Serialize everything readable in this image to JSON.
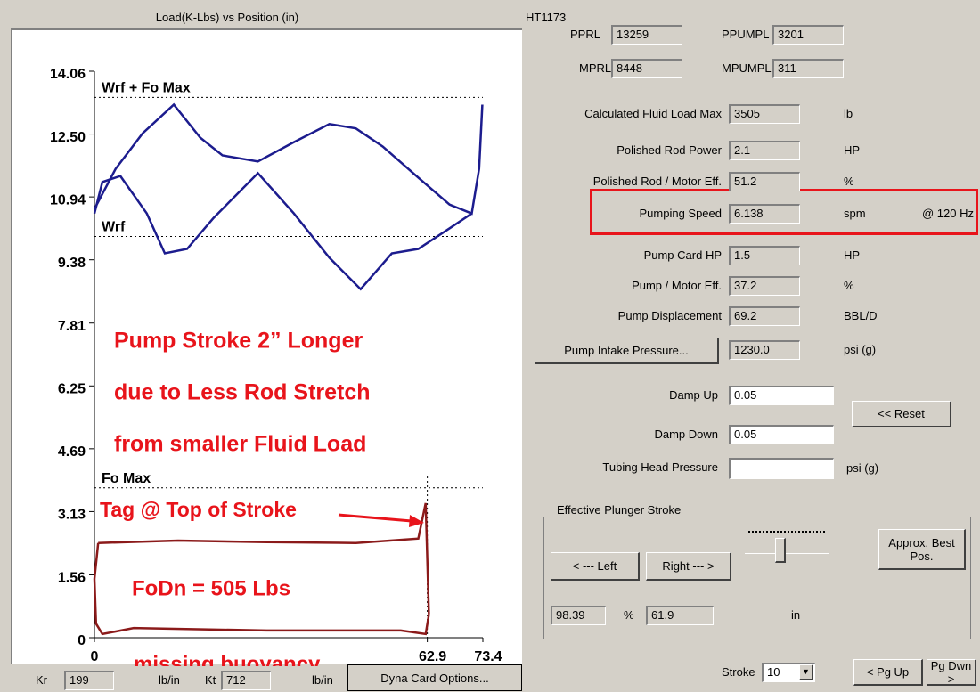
{
  "plot": {
    "title": "Load(K-Lbs) vs Position (in)",
    "xlim": [
      0,
      73.4
    ],
    "ylim": [
      0,
      14.06
    ],
    "yticks": [
      0,
      1.56,
      3.13,
      4.69,
      6.25,
      7.81,
      9.38,
      10.94,
      {
        "value": 12.5,
        "label": "12.50"
      },
      14.06
    ],
    "xticks": [
      0,
      62.9,
      73.4
    ],
    "references": [
      {
        "label": "Wrf + Fo Max",
        "value": 13.41
      },
      {
        "label": "Wrf",
        "value": 9.96
      },
      {
        "label": "Fo Max",
        "value": 3.72
      }
    ],
    "annotations": [
      "Pump Stroke 2” Longer",
      "due to Less Rod Stretch",
      "from smaller Fluid Load",
      "Tag @ Top of Stroke",
      "FoDn = 505 Lbs",
      "missing buoyancy"
    ],
    "curves": [
      {
        "color": "#1c1c8e",
        "x": [
          0,
          4.0,
          9.1,
          15.0,
          20.0,
          24.2,
          30.9,
          37.7,
          44.4,
          49.4,
          54.5,
          61.2,
          67.1,
          71.3,
          72.7,
          73.3
        ],
        "y": [
          10.64,
          11.64,
          12.52,
          13.23,
          12.41,
          11.97,
          11.82,
          12.3,
          12.75,
          12.64,
          12.19,
          11.42,
          10.75,
          10.53,
          11.64,
          13.23
        ]
      },
      {
        "color": "#1c1c8e",
        "x": [
          0,
          1.5,
          4.9,
          9.9,
          13.3,
          17.5,
          22.5,
          30.9,
          37.7,
          44.4,
          50.3,
          56.2,
          61.2,
          66.3,
          71.3
        ],
        "y": [
          10.53,
          11.31,
          11.46,
          10.53,
          9.54,
          9.65,
          10.42,
          11.53,
          10.53,
          9.43,
          8.65,
          9.54,
          9.65,
          10.09,
          10.53
        ]
      },
      {
        "color": "#8b1a1a",
        "x": [
          0.7,
          15.8,
          32.6,
          49.4,
          61.2,
          62.6,
          63.2
        ],
        "y": [
          2.35,
          2.41,
          2.37,
          2.35,
          2.46,
          3.34,
          0.58
        ]
      },
      {
        "color": "#8b1a1a",
        "x": [
          0.7,
          0,
          0.3,
          1.5,
          7.4,
          32.6,
          57.9,
          62.6,
          63.2
        ],
        "y": [
          2.35,
          1.46,
          0.35,
          0.09,
          0.24,
          0.18,
          0.18,
          0.09,
          0.58
        ]
      }
    ]
  },
  "header": "HT1173",
  "top_fields": [
    {
      "label": "PPRL",
      "value": "13259"
    },
    {
      "label": "PPUMPL",
      "value": "3201"
    },
    {
      "label": "MPRL",
      "value": "8448"
    },
    {
      "label": "MPUMPL",
      "value": "311"
    }
  ],
  "results": [
    {
      "label": "Calculated Fluid Load Max",
      "value": "3505",
      "unit": "lb"
    },
    {
      "label": "Polished Rod Power",
      "value": "2.1",
      "unit": "HP"
    },
    {
      "label": "Polished Rod / Motor Eff.",
      "value": "51.2",
      "unit": "%"
    },
    {
      "label": "Pumping Speed",
      "value": "6.138",
      "unit": "spm",
      "note": "@ 120 Hz"
    },
    {
      "label": "Pump Card HP",
      "value": "1.5",
      "unit": "HP"
    },
    {
      "label": "Pump / Motor Eff.",
      "value": "37.2",
      "unit": "%"
    },
    {
      "label": "Pump Displacement",
      "value": "69.2",
      "unit": "BBL/D"
    },
    {
      "label": "Pump Intake Pressure...",
      "value": "1230.0",
      "unit": "psi (g)"
    }
  ],
  "damp": [
    {
      "label": "Damp Up",
      "value": "0.05"
    },
    {
      "label": "Damp Down",
      "value": "0.05"
    }
  ],
  "reset": "<< Reset",
  "tubing": {
    "label": "Tubing Head Pressure",
    "unit": "psi (g)"
  },
  "plunger": {
    "title": "Effective Plunger Stroke",
    "left": "< --- Left",
    "right": "Right --- >",
    "best": "Approx. Best Pos.",
    "percent": "98.39",
    "percent_unit": "%",
    "length": "61.9",
    "length_unit": "in"
  },
  "stroke": {
    "label": "Stroke",
    "value": "10"
  },
  "page_up": "< Pg Up",
  "page_down": "Pg Dwn >",
  "footer": {
    "kr_label": "Kr",
    "kr": "199",
    "kr_unit": "lb/in",
    "kt_label": "Kt",
    "kt": "712",
    "kt_unit": "lb/in",
    "options": "Dyna Card Options..."
  }
}
